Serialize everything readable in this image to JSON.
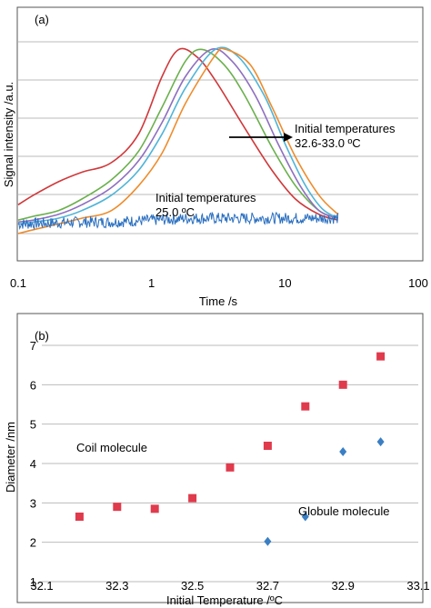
{
  "figure": {
    "panel_a_tag": "(a)",
    "panel_b_tag": "(b)"
  },
  "chart_data": [
    {
      "type": "line",
      "panel": "(a)",
      "xlabel": "Time /s",
      "ylabel": "Signal intensity /a.u.",
      "xscale": "log",
      "xlim": [
        0.1,
        100
      ],
      "xticks": [
        "0.1",
        "1",
        "10",
        "100"
      ],
      "ylim": [
        0,
        1
      ],
      "grid": "horizontal",
      "colors": {
        "red": "#d0383a",
        "green": "#6ab04c",
        "purple": "#8e6fc0",
        "cyan": "#4fb4d8",
        "orange": "#ee8c2c",
        "blue": "#2a6fc0"
      },
      "series": [
        {
          "color": "#d0383a",
          "x": [
            0.1,
            0.13,
            0.2,
            0.3,
            0.5,
            0.8,
            1.2,
            1.6,
            2.2,
            3,
            5,
            8,
            12,
            18,
            25
          ],
          "y": [
            0.15,
            0.2,
            0.27,
            0.32,
            0.37,
            0.52,
            0.82,
            0.96,
            0.92,
            0.8,
            0.55,
            0.33,
            0.18,
            0.1,
            0.07
          ]
        },
        {
          "color": "#6ab04c",
          "x": [
            0.1,
            0.13,
            0.2,
            0.3,
            0.5,
            0.8,
            1.2,
            1.8,
            2.4,
            3.5,
            5,
            8,
            12,
            18,
            25
          ],
          "y": [
            0.07,
            0.09,
            0.12,
            0.18,
            0.28,
            0.43,
            0.66,
            0.9,
            0.96,
            0.88,
            0.72,
            0.45,
            0.25,
            0.12,
            0.08
          ]
        },
        {
          "color": "#8e6fc0",
          "x": [
            0.1,
            0.13,
            0.2,
            0.3,
            0.5,
            0.8,
            1.2,
            1.8,
            2.8,
            4,
            6,
            9,
            13,
            18,
            25
          ],
          "y": [
            0.06,
            0.07,
            0.1,
            0.15,
            0.24,
            0.38,
            0.58,
            0.82,
            0.96,
            0.9,
            0.72,
            0.46,
            0.25,
            0.12,
            0.08
          ]
        },
        {
          "color": "#4fb4d8",
          "x": [
            0.1,
            0.13,
            0.2,
            0.3,
            0.5,
            0.8,
            1.2,
            1.8,
            3,
            4.5,
            7,
            10,
            14,
            19,
            25
          ],
          "y": [
            0.05,
            0.06,
            0.08,
            0.12,
            0.2,
            0.33,
            0.52,
            0.76,
            0.96,
            0.92,
            0.72,
            0.47,
            0.26,
            0.13,
            0.08
          ]
        },
        {
          "color": "#ee8c2c",
          "x": [
            0.1,
            0.13,
            0.2,
            0.3,
            0.5,
            0.8,
            1.2,
            1.8,
            3,
            3.6,
            5.5,
            8,
            12,
            18,
            25
          ],
          "y": [
            0.0,
            0.02,
            0.05,
            0.08,
            0.12,
            0.25,
            0.42,
            0.68,
            0.93,
            0.96,
            0.88,
            0.66,
            0.4,
            0.2,
            0.1
          ]
        },
        {
          "color": "#2a6fc0",
          "noisy": true,
          "x": [
            0.1,
            0.3,
            0.5,
            1,
            2,
            5,
            10,
            25
          ],
          "y": [
            0.05,
            0.06,
            0.06,
            0.07,
            0.08,
            0.08,
            0.08,
            0.08
          ]
        }
      ],
      "annotations": [
        {
          "text": "Initial temperatures",
          "text2": "32.6-33.0 ºC",
          "arrow": true
        },
        {
          "text": "Initial temperatures",
          "text2": "25.0 ºC",
          "arrow": false
        }
      ]
    },
    {
      "type": "scatter",
      "panel": "(b)",
      "xlabel": "Initial Temperature /ºC",
      "ylabel": "Diameter /nm",
      "xlim": [
        32.1,
        33.1
      ],
      "ylim": [
        1,
        7
      ],
      "xticks": [
        "32.1",
        "32.3",
        "32.5",
        "32.7",
        "32.9",
        "33.1"
      ],
      "yticks": [
        "1",
        "2",
        "3",
        "4",
        "5",
        "6",
        "7"
      ],
      "grid": "horizontal",
      "series": [
        {
          "name": "Coil molecule",
          "color": "#e03a4d",
          "marker": "square",
          "x": [
            32.2,
            32.3,
            32.4,
            32.5,
            32.6,
            32.7,
            32.8,
            32.9,
            33.0
          ],
          "y": [
            2.65,
            2.9,
            2.85,
            3.12,
            3.9,
            4.45,
            5.45,
            6.0,
            6.72
          ]
        },
        {
          "name": "Globule molecule",
          "color": "#3a7fc4",
          "marker": "diamond",
          "x": [
            32.7,
            32.8,
            32.9,
            33.0
          ],
          "y": [
            2.02,
            2.65,
            4.3,
            4.55
          ]
        }
      ]
    }
  ]
}
